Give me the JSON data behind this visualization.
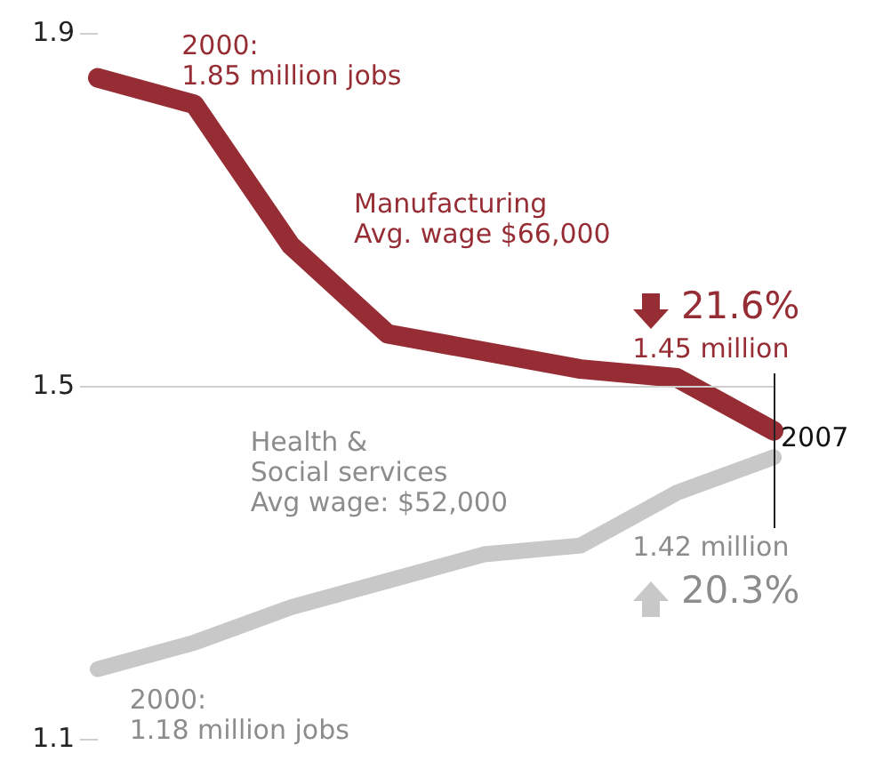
{
  "chart_data": {
    "type": "line",
    "categories": [
      null,
      null,
      null,
      null,
      null,
      null,
      null,
      null
    ],
    "ylim": [
      1.1,
      1.9
    ],
    "yticks": [
      1.1,
      1.5,
      1.9
    ],
    "tick_labels": "y",
    "legend": false,
    "marker": "none",
    "line_style": "solid",
    "series": [
      {
        "color": "#962d34",
        "values": [
          1.85,
          1.82,
          1.66,
          1.56,
          1.54,
          1.52,
          1.51,
          1.45
        ]
      },
      {
        "color": "#c8c8c8",
        "values": [
          1.18,
          1.21,
          1.25,
          1.28,
          1.31,
          1.32,
          1.38,
          1.42
        ]
      }
    ],
    "ref_lines": [
      {
        "axis": "y",
        "value": 1.5,
        "color": "#cfcfcf"
      }
    ],
    "annotations": [
      "2000:\n1.85 million jobs",
      "Manufacturing\nAvg. wage $66,000",
      "21.6%",
      "1.45 million",
      "Health &\nSocial services\nAvg wage: $52,000",
      "1.42 million",
      "20.3%",
      "2000:\n1.18 million jobs",
      "2007"
    ]
  }
}
